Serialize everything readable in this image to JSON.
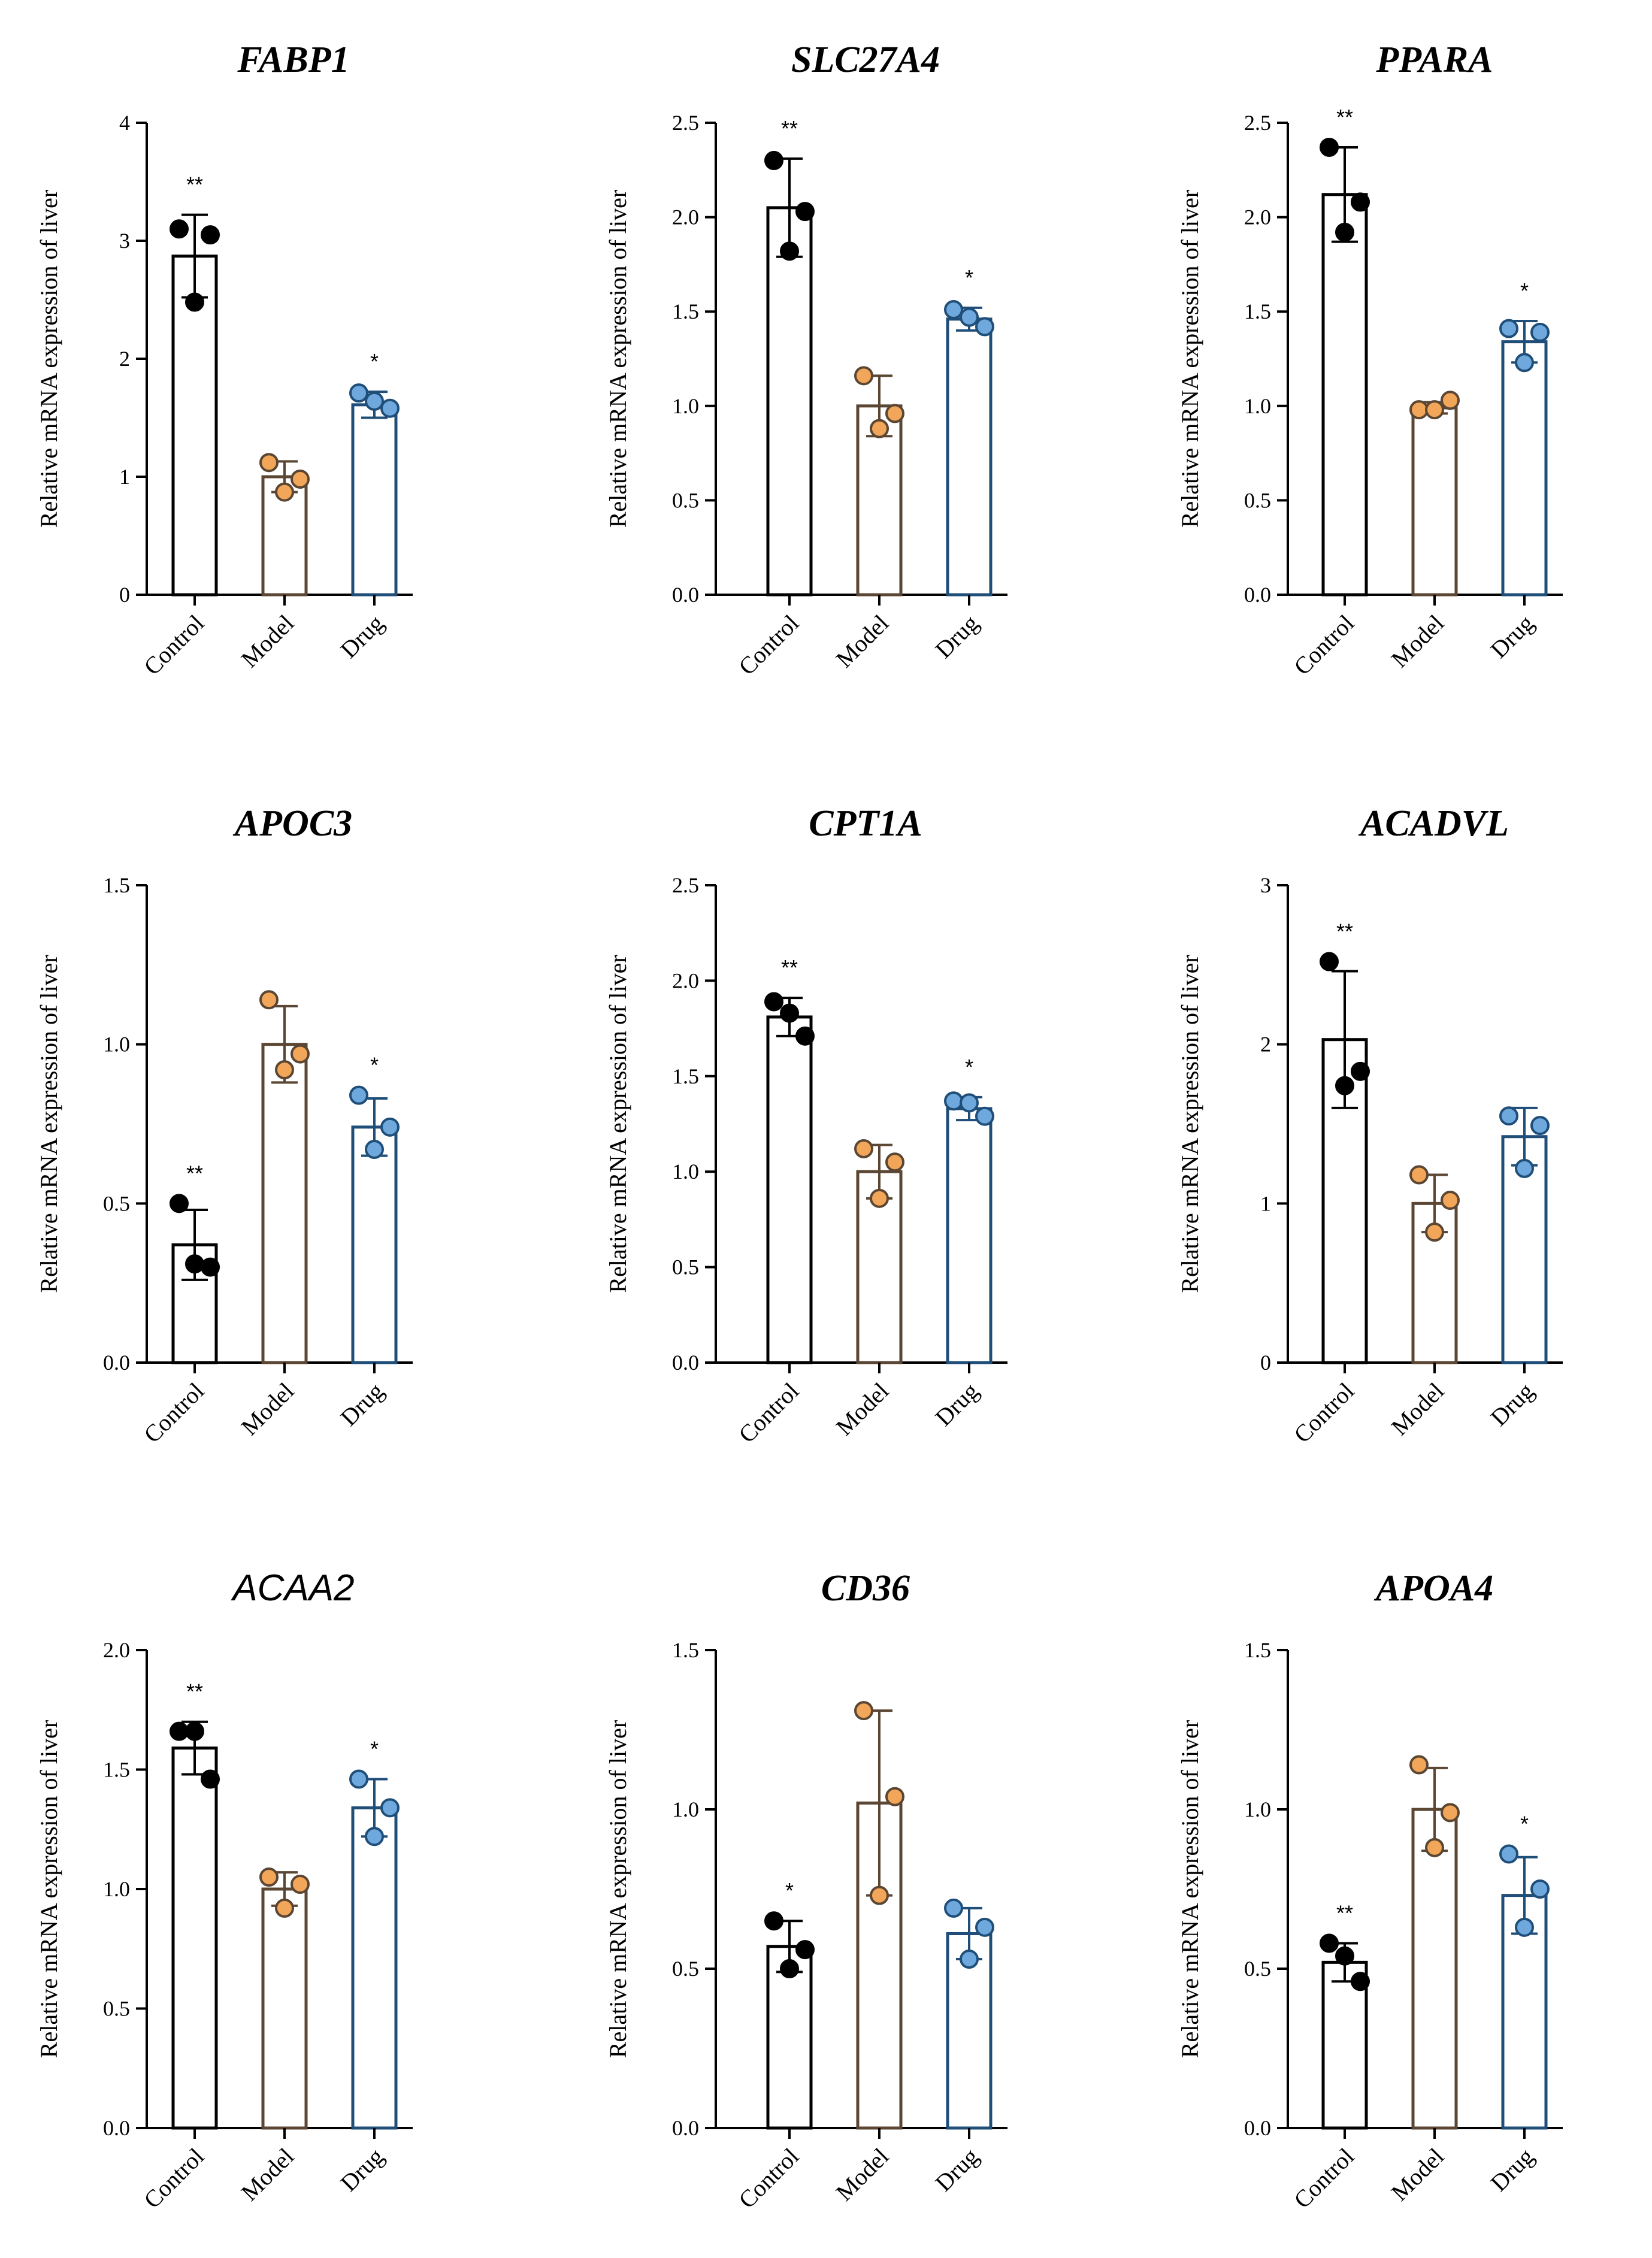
{
  "colors": {
    "control_edge": "#000000",
    "control_point": "#000000",
    "model_edge": "#5a4632",
    "model_point": "#f2a65a",
    "drug_edge": "#1f4e79",
    "drug_point": "#6fa8dc",
    "axis": "#000000"
  },
  "chart_data": [
    {
      "type": "bar",
      "title": "FABP1",
      "title_style": "serif",
      "categories": [
        "Control",
        "Model",
        "Drug"
      ],
      "values": [
        2.87,
        1.0,
        1.61
      ],
      "errors": [
        0.35,
        0.13,
        0.11
      ],
      "points": [
        [
          3.1,
          3.05,
          2.48
        ],
        [
          1.12,
          0.98,
          0.87
        ],
        [
          1.71,
          1.58,
          1.64
        ]
      ],
      "significance": [
        "**",
        "",
        "*"
      ],
      "ylabel": "Relative mRNA expression of liver",
      "ylim": [
        0,
        4
      ],
      "yticks": [
        "0",
        "1",
        "2",
        "3",
        "4"
      ],
      "ytick_values": [
        0,
        1,
        2,
        3,
        4
      ]
    },
    {
      "type": "bar",
      "title": "SLC27A4",
      "title_style": "serif",
      "categories": [
        "Control",
        "Model",
        "Drug"
      ],
      "values": [
        2.05,
        1.0,
        1.46
      ],
      "errors": [
        0.26,
        0.16,
        0.06
      ],
      "points": [
        [
          2.3,
          2.03,
          1.82
        ],
        [
          1.16,
          0.96,
          0.88
        ],
        [
          1.51,
          1.42,
          1.47
        ]
      ],
      "significance": [
        "**",
        "",
        "*"
      ],
      "ylabel": "Relative mRNA expression of liver",
      "ylim": [
        0,
        2.5
      ],
      "yticks": [
        "0.0",
        "0.5",
        "1.0",
        "1.5",
        "2.0",
        "2.5"
      ],
      "ytick_values": [
        0,
        0.5,
        1,
        1.5,
        2,
        2.5
      ]
    },
    {
      "type": "bar",
      "title": "PPARA",
      "title_style": "serif",
      "categories": [
        "Control",
        "Model",
        "Drug"
      ],
      "values": [
        2.12,
        0.99,
        1.34
      ],
      "errors": [
        0.25,
        0.03,
        0.11
      ],
      "points": [
        [
          2.37,
          2.08,
          1.92
        ],
        [
          0.98,
          1.03,
          0.98
        ],
        [
          1.41,
          1.39,
          1.23
        ]
      ],
      "significance": [
        "**",
        "",
        "*"
      ],
      "ylabel": "Relative mRNA expression of liver",
      "ylim": [
        0,
        2.5
      ],
      "yticks": [
        "0.0",
        "0.5",
        "1.0",
        "1.5",
        "2.0",
        "2.5"
      ],
      "ytick_values": [
        0,
        0.5,
        1,
        1.5,
        2,
        2.5
      ]
    },
    {
      "type": "bar",
      "title": "APOC3",
      "title_style": "serif",
      "categories": [
        "Control",
        "Model",
        "Drug"
      ],
      "values": [
        0.37,
        1.0,
        0.74
      ],
      "errors": [
        0.11,
        0.12,
        0.09
      ],
      "points": [
        [
          0.5,
          0.3,
          0.31
        ],
        [
          1.14,
          0.97,
          0.92
        ],
        [
          0.84,
          0.74,
          0.67
        ]
      ],
      "significance": [
        "**",
        "",
        "*"
      ],
      "ylabel": "Relative mRNA expression of liver",
      "ylim": [
        0,
        1.5
      ],
      "yticks": [
        "0.0",
        "0.5",
        "1.0",
        "1.5"
      ],
      "ytick_values": [
        0,
        0.5,
        1,
        1.5
      ]
    },
    {
      "type": "bar",
      "title": "CPT1A",
      "title_style": "serif",
      "categories": [
        "Control",
        "Model",
        "Drug"
      ],
      "values": [
        1.81,
        1.0,
        1.33
      ],
      "errors": [
        0.1,
        0.14,
        0.06
      ],
      "points": [
        [
          1.89,
          1.71,
          1.83
        ],
        [
          1.12,
          1.05,
          0.86
        ],
        [
          1.37,
          1.29,
          1.36
        ]
      ],
      "significance": [
        "**",
        "",
        "*"
      ],
      "ylabel": "Relative mRNA expression of liver",
      "ylim": [
        0,
        2.5
      ],
      "yticks": [
        "0.0",
        "0.5",
        "1.0",
        "1.5",
        "2.0",
        "2.5"
      ],
      "ytick_values": [
        0,
        0.5,
        1,
        1.5,
        2,
        2.5
      ]
    },
    {
      "type": "bar",
      "title": "ACADVL",
      "title_style": "serif",
      "categories": [
        "Control",
        "Model",
        "Drug"
      ],
      "values": [
        2.03,
        1.0,
        1.42
      ],
      "errors": [
        0.43,
        0.18,
        0.18
      ],
      "points": [
        [
          2.52,
          1.83,
          1.74
        ],
        [
          1.18,
          1.02,
          0.82
        ],
        [
          1.55,
          1.49,
          1.22
        ]
      ],
      "significance": [
        "**",
        "",
        ""
      ],
      "ylabel": "Relative mRNA expression of liver",
      "ylim": [
        0,
        3
      ],
      "yticks": [
        "0",
        "1",
        "2",
        "3"
      ],
      "ytick_values": [
        0,
        1,
        2,
        3
      ]
    },
    {
      "type": "bar",
      "title": "ACAA2",
      "title_style": "sans",
      "categories": [
        "Control",
        "Model",
        "Drug"
      ],
      "values": [
        1.59,
        1.0,
        1.34
      ],
      "errors": [
        0.11,
        0.07,
        0.12
      ],
      "points": [
        [
          1.66,
          1.46,
          1.66
        ],
        [
          1.05,
          1.02,
          0.92
        ],
        [
          1.46,
          1.34,
          1.22
        ]
      ],
      "significance": [
        "**",
        "",
        "*"
      ],
      "ylabel": "Relative mRNA expression of liver",
      "ylim": [
        0,
        2.0
      ],
      "yticks": [
        "0.0",
        "0.5",
        "1.0",
        "1.5",
        "2.0"
      ],
      "ytick_values": [
        0,
        0.5,
        1,
        1.5,
        2
      ]
    },
    {
      "type": "bar",
      "title": "CD36",
      "title_style": "serif",
      "categories": [
        "Control",
        "Model",
        "Drug"
      ],
      "values": [
        0.57,
        1.02,
        0.61
      ],
      "errors": [
        0.08,
        0.29,
        0.08
      ],
      "points": [
        [
          0.65,
          0.56,
          0.5
        ],
        [
          1.31,
          1.04,
          0.73
        ],
        [
          0.69,
          0.63,
          0.53
        ]
      ],
      "significance": [
        "*",
        "",
        ""
      ],
      "ylabel": "Relative mRNA expression of liver",
      "ylim": [
        0,
        1.5
      ],
      "yticks": [
        "0.5",
        "1.0",
        "1.5"
      ],
      "ytick_values": [
        0.5,
        1,
        1.5
      ],
      "yzero_label": "0.0"
    },
    {
      "type": "bar",
      "title": "APOA4",
      "title_style": "serif",
      "categories": [
        "Control",
        "Model",
        "Drug"
      ],
      "values": [
        0.52,
        1.0,
        0.73
      ],
      "errors": [
        0.06,
        0.13,
        0.12
      ],
      "points": [
        [
          0.58,
          0.46,
          0.54
        ],
        [
          1.14,
          0.99,
          0.88
        ],
        [
          0.86,
          0.75,
          0.63
        ]
      ],
      "significance": [
        "**",
        "",
        "*"
      ],
      "ylabel": "Relative mRNA expression of liver",
      "ylim": [
        0,
        1.5
      ],
      "yticks": [
        "0.0",
        "0.5",
        "1.0",
        "1.5"
      ],
      "ytick_values": [
        0,
        0.5,
        1,
        1.5
      ]
    }
  ]
}
